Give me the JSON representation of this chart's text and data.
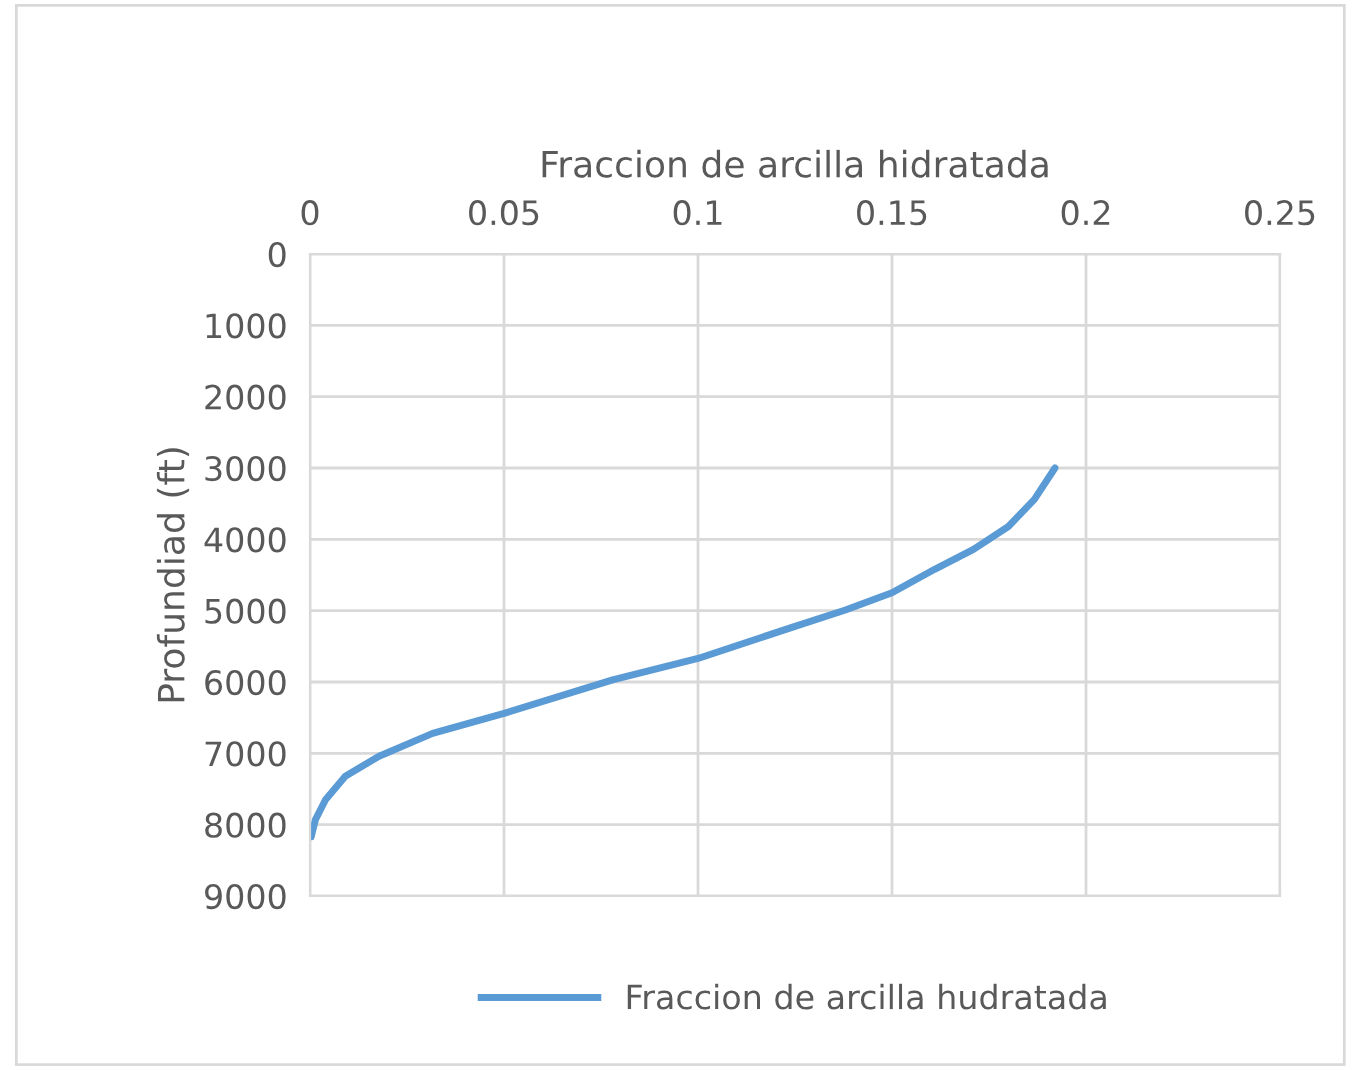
{
  "chart_data": {
    "type": "line",
    "xlabel": "Fraccion de arcilla hidratada",
    "ylabel": "Profundiad (ft)",
    "xlim": [
      0,
      0.25
    ],
    "xticks": [
      0,
      0.05,
      0.1,
      0.15,
      0.2,
      0.25
    ],
    "ylim": [
      9000,
      0
    ],
    "yticks": [
      0,
      1000,
      2000,
      3000,
      4000,
      5000,
      6000,
      7000,
      8000,
      9000
    ],
    "grid": true,
    "legend": "bottom",
    "marker": "none",
    "line_style": "solid",
    "series": [
      {
        "name": "Fraccion de arcilla hudratada",
        "color": "#5b9bd5",
        "x": [
          0.192,
          0.1867,
          0.18,
          0.171,
          0.161,
          0.15,
          0.138,
          0.125,
          0.1,
          0.078,
          0.05,
          0.0316,
          0.0178,
          0.0091,
          0.004,
          0.0014,
          0.0003
        ],
        "values": [
          3000,
          3440,
          3820,
          4140,
          4420,
          4750,
          4990,
          5220,
          5670,
          5970,
          6440,
          6720,
          7040,
          7320,
          7650,
          7930,
          8170
        ]
      }
    ]
  }
}
